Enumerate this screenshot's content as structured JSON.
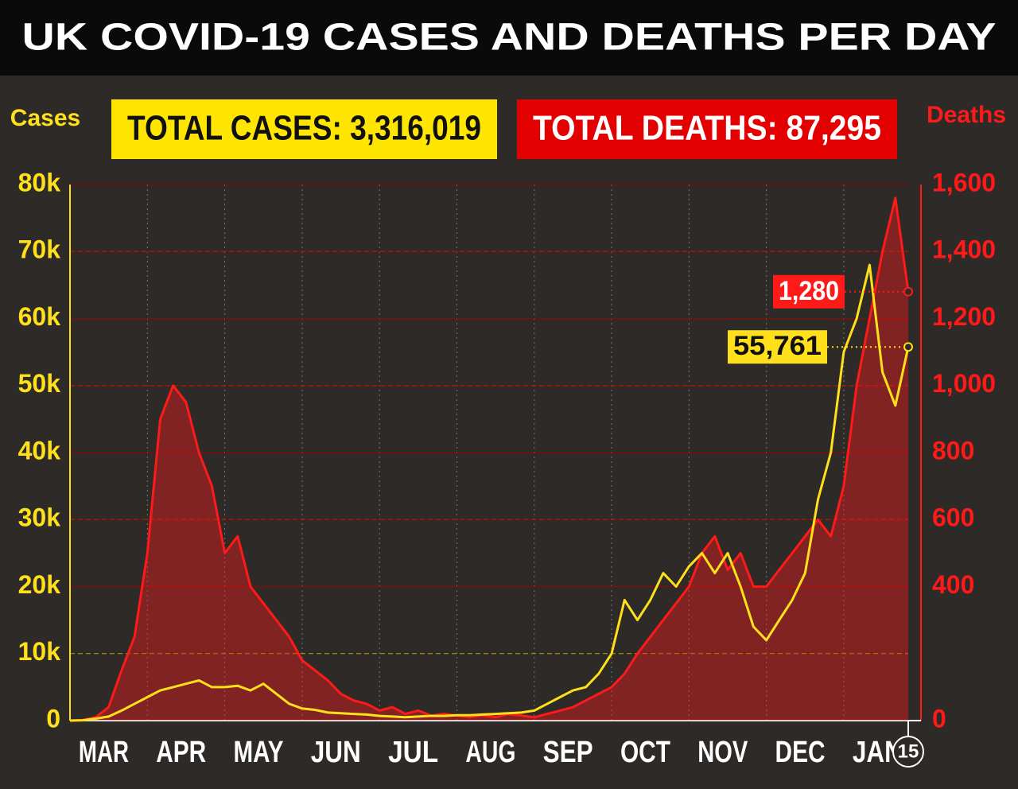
{
  "chart_data": {
    "type": "line",
    "title": "UK COVID-19 CASES AND DEATHS PER DAY",
    "totals": [
      {
        "label": "TOTAL CASES: 3,316,019",
        "color": "#ffe600",
        "text_color": "#111111"
      },
      {
        "label": "TOTAL DEATHS: 87,295",
        "color": "#e30000",
        "text_color": "#ffffff"
      }
    ],
    "y_label": "Cases",
    "y2_label": "Deaths",
    "categories": [
      null,
      null,
      "MAR",
      null,
      null,
      null,
      null,
      null,
      "APR",
      null,
      null,
      null,
      null,
      null,
      "MAY",
      null,
      null,
      null,
      null,
      null,
      "JUN",
      null,
      null,
      null,
      null,
      null,
      "JUL",
      null,
      null,
      null,
      null,
      null,
      "AUG",
      null,
      null,
      null,
      null,
      null,
      "SEP",
      null,
      null,
      null,
      null,
      null,
      "OCT",
      null,
      null,
      null,
      null,
      null,
      "NOV",
      null,
      null,
      null,
      null,
      null,
      "DEC",
      null,
      null,
      null,
      null,
      null,
      "JAN",
      null,
      null,
      null
    ],
    "end_label": "15",
    "series": [
      {
        "color": "#ffe01a",
        "last_label": "55,761",
        "values": [
          0,
          50,
          300,
          600,
          1500,
          2500,
          3500,
          4500,
          5000,
          5500,
          6000,
          5000,
          5000,
          5200,
          4500,
          5500,
          4000,
          2500,
          1800,
          1600,
          1200,
          1100,
          1000,
          900,
          700,
          600,
          500,
          600,
          700,
          700,
          800,
          800,
          900,
          1000,
          1100,
          1200,
          1500,
          2500,
          3500,
          4500,
          5000,
          7000,
          10000,
          18000,
          15000,
          18000,
          22000,
          20000,
          23000,
          25000,
          22000,
          25000,
          20000,
          14000,
          12000,
          15000,
          18000,
          22000,
          33000,
          40000,
          55000,
          60000,
          68000,
          52000,
          47000,
          55761
        ]
      },
      {
        "color": "#ff1a1a",
        "axis": "y2",
        "area": true,
        "last_label": "1,280",
        "values": [
          0,
          2,
          10,
          40,
          150,
          250,
          500,
          900,
          1000,
          950,
          800,
          700,
          500,
          550,
          400,
          350,
          300,
          250,
          180,
          150,
          120,
          80,
          60,
          50,
          30,
          40,
          20,
          30,
          15,
          20,
          15,
          10,
          15,
          10,
          20,
          15,
          10,
          20,
          30,
          40,
          60,
          80,
          100,
          140,
          200,
          250,
          300,
          350,
          400,
          500,
          550,
          450,
          500,
          400,
          400,
          450,
          500,
          550,
          600,
          550,
          700,
          1000,
          1200,
          1400,
          1560,
          1280
        ]
      }
    ],
    "ylim": [
      0,
      80000
    ],
    "yticks": [
      0,
      {
        "value": 10000,
        "label": "10k"
      },
      {
        "value": 20000,
        "label": "20k"
      },
      {
        "value": 30000,
        "label": "30k"
      },
      {
        "value": 40000,
        "label": "40k"
      },
      {
        "value": 50000,
        "label": "50k"
      },
      {
        "value": 60000,
        "label": "60k"
      },
      {
        "value": 70000,
        "label": "70k"
      },
      {
        "value": 80000,
        "label": "80k"
      }
    ],
    "y2lim": [
      0,
      1600
    ],
    "y2ticks": [
      0,
      400,
      600,
      800,
      {
        "value": 1000,
        "label": "1,000"
      },
      {
        "value": 1200,
        "label": "1,200"
      },
      {
        "value": 1400,
        "label": "1,400"
      },
      {
        "value": 1600,
        "label": "1,600"
      }
    ],
    "grid": true
  }
}
